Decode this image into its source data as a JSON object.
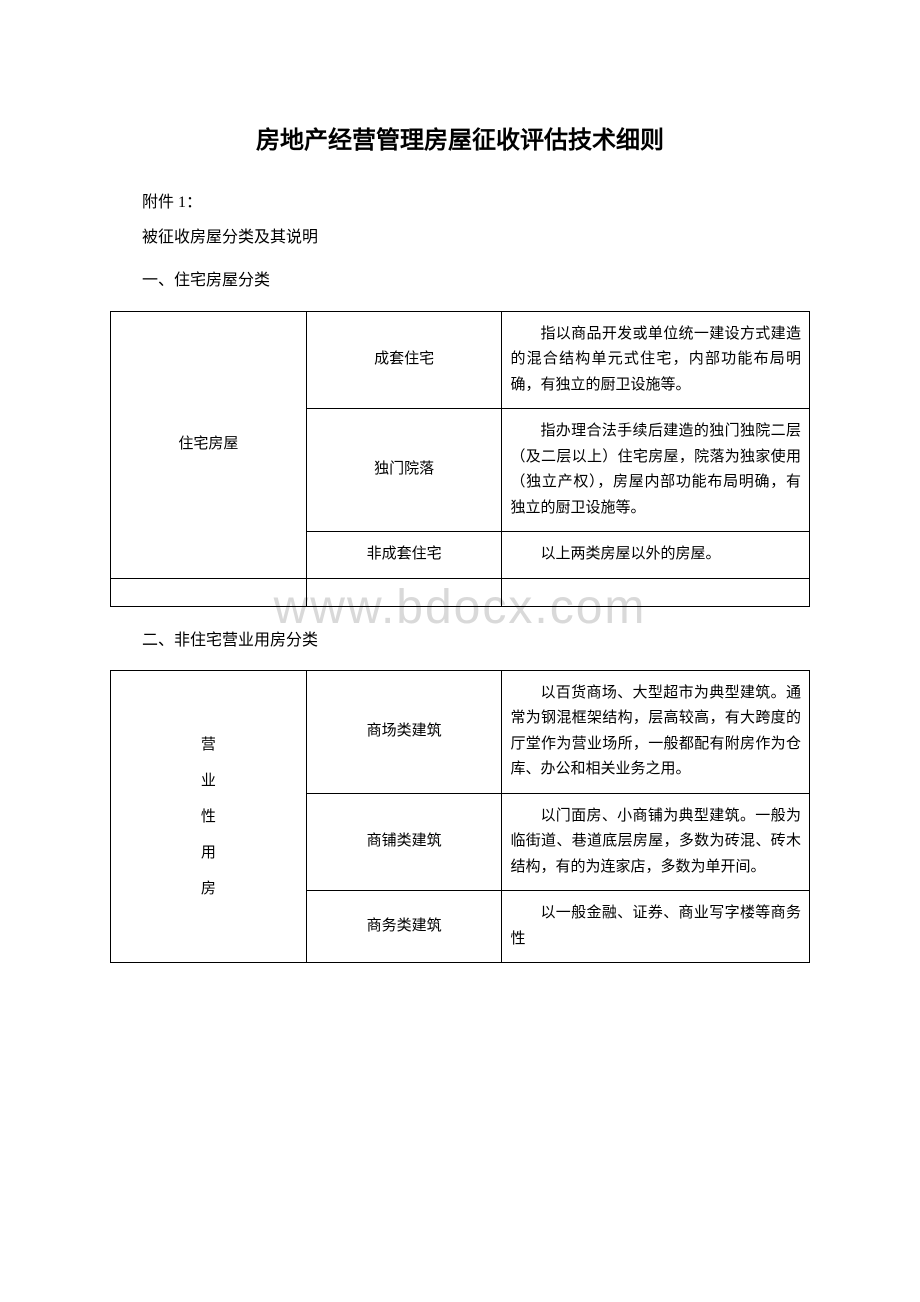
{
  "title": "房地产经营管理房屋征收评估技术细则",
  "attachment_label": "附件 1：",
  "subtitle": "被征收房屋分类及其说明",
  "section1_heading": "一、住宅房屋分类",
  "section2_heading": "二、非住宅营业用房分类",
  "watermark": "www.bdocx.com",
  "table1": {
    "category": "住宅房屋",
    "rows": [
      {
        "type": "成套住宅",
        "desc": "指以商品开发或单位统一建设方式建造的混合结构单元式住宅，内部功能布局明确，有独立的厨卫设施等。"
      },
      {
        "type": "独门院落",
        "desc": "指办理合法手续后建造的独门独院二层（及二层以上）住宅房屋，院落为独家使用（独立产权），房屋内部功能布局明确，有独立的厨卫设施等。"
      },
      {
        "type": "非成套住宅",
        "desc": "以上两类房屋以外的房屋。"
      }
    ]
  },
  "table2": {
    "category_chars": [
      "营",
      "业",
      "性",
      "用",
      "房"
    ],
    "rows": [
      {
        "type": "商场类建筑",
        "desc": "以百货商场、大型超市为典型建筑。通常为钢混框架结构，层高较高，有大跨度的厅堂作为营业场所，一般都配有附房作为仓库、办公和相关业务之用。"
      },
      {
        "type": "商铺类建筑",
        "desc": "以门面房、小商铺为典型建筑。一般为临街道、巷道底层房屋，多数为砖混、砖木结构，有的为连家店，多数为单开间。"
      },
      {
        "type": "商务类建筑",
        "desc": "以一般金融、证券、商业写字楼等商务性"
      }
    ]
  }
}
